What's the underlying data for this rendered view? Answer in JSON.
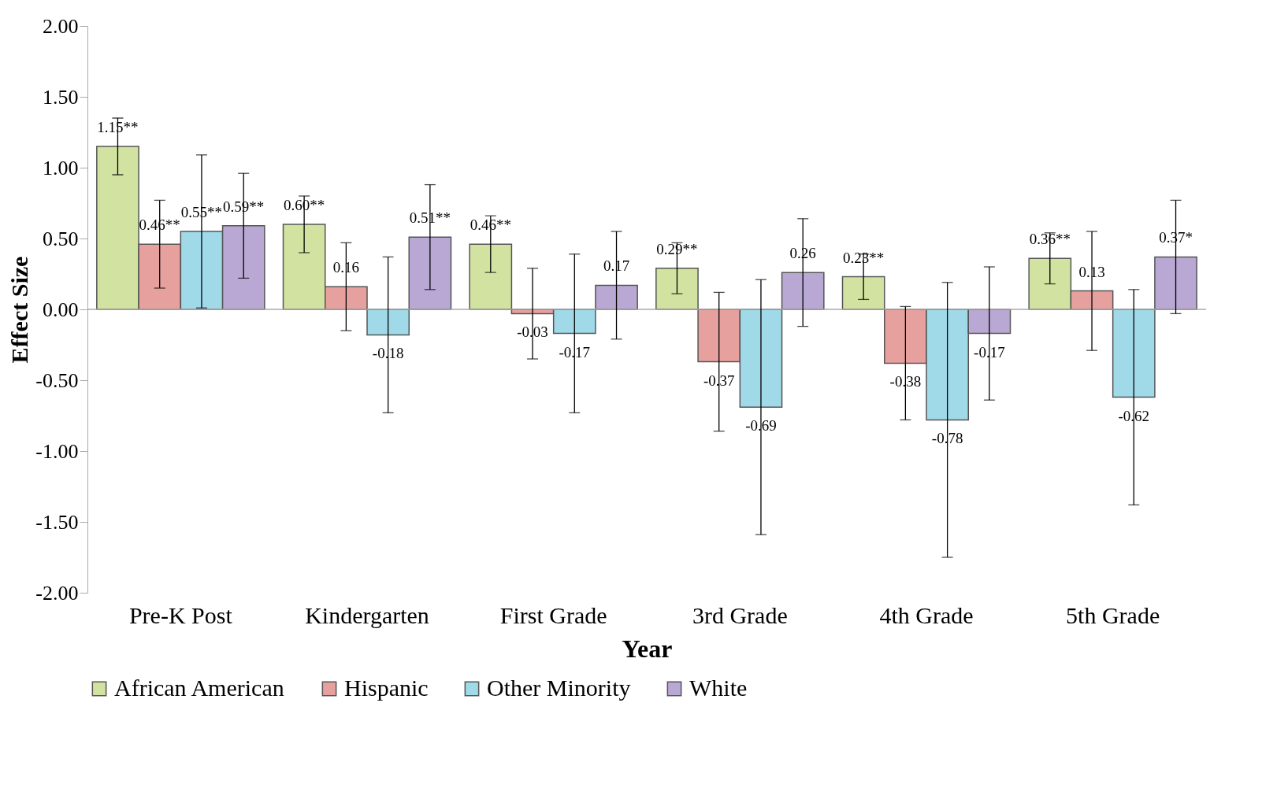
{
  "chart_data": {
    "type": "bar",
    "xlabel": "Year",
    "ylabel": "Effect Size",
    "categories": [
      "Pre-K Post",
      "Kindergarten",
      "First Grade",
      "3rd Grade",
      "4th Grade",
      "5th Grade"
    ],
    "series": [
      {
        "name": "African American",
        "color": "#d2e2a0",
        "values": [
          1.15,
          0.6,
          0.46,
          0.29,
          0.23,
          0.36
        ],
        "errors": [
          0.2,
          0.2,
          0.2,
          0.18,
          0.16,
          0.18
        ],
        "value_labels": [
          "1.15**",
          "0.60**",
          "0.46**",
          "0.29**",
          "0.23**",
          "0.36**"
        ]
      },
      {
        "name": "Hispanic",
        "color": "#e6a19f",
        "values": [
          0.46,
          0.16,
          -0.03,
          -0.37,
          -0.38,
          0.13
        ],
        "errors": [
          0.31,
          0.31,
          0.32,
          0.49,
          0.4,
          0.42
        ],
        "value_labels": [
          "0.46**",
          "0.16",
          "-0.03",
          "-0.37",
          "-0.38",
          "0.13"
        ]
      },
      {
        "name": "Other Minority",
        "color": "#a0d9e8",
        "values": [
          0.55,
          -0.18,
          -0.17,
          -0.69,
          -0.78,
          -0.62
        ],
        "errors": [
          0.54,
          0.55,
          0.56,
          0.9,
          0.97,
          0.76
        ],
        "value_labels": [
          "0.55**",
          "-0.18",
          "-0.17",
          "-0.69",
          "-0.78",
          "-0.62"
        ]
      },
      {
        "name": "White",
        "color": "#b9a8d3",
        "values": [
          0.59,
          0.51,
          0.17,
          0.26,
          -0.17,
          0.37
        ],
        "errors": [
          0.37,
          0.37,
          0.38,
          0.38,
          0.47,
          0.4
        ],
        "value_labels": [
          "0.59**",
          "0.51**",
          "0.17",
          "0.26",
          "-0.17",
          "0.37*"
        ]
      }
    ],
    "ylim": [
      -2.0,
      2.0
    ],
    "yticks": [
      {
        "value": -2.0,
        "label": "-2.00"
      },
      {
        "value": -1.5,
        "label": "-1.50"
      },
      {
        "value": -1.0,
        "label": "-1.00"
      },
      {
        "value": -0.5,
        "label": "-0.50"
      },
      {
        "value": 0.0,
        "label": "0.00"
      },
      {
        "value": 0.5,
        "label": "0.50"
      },
      {
        "value": 1.0,
        "label": "1.00"
      },
      {
        "value": 1.5,
        "label": "1.50"
      },
      {
        "value": 2.0,
        "label": "2.00"
      }
    ],
    "ref_lines": [
      {
        "axis": "y",
        "value": 0.0,
        "color": "#aaaaaa"
      }
    ],
    "grid": false,
    "legend": "bottom"
  }
}
